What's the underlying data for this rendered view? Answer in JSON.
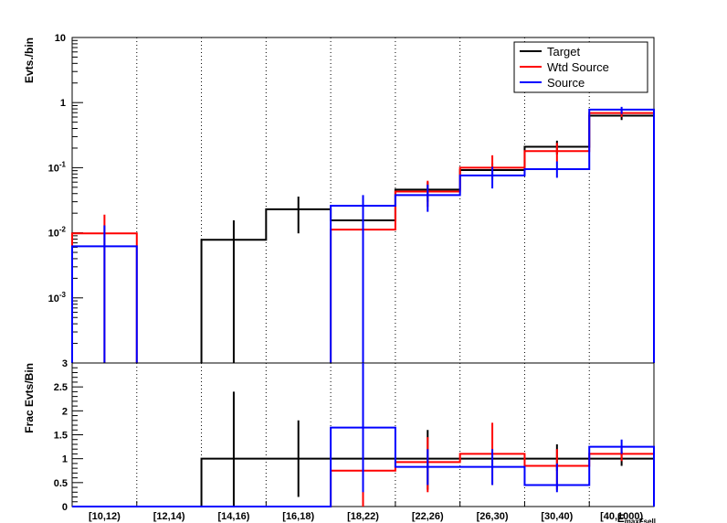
{
  "chart_data": [
    {
      "panel": "top",
      "type": "step",
      "ylabel": "Evts./bin",
      "yscale": "log",
      "ylim": [
        0.0001,
        10
      ],
      "yticks": [
        {
          "value": 10,
          "base": "10",
          "exp": ""
        },
        {
          "value": 1,
          "base": "1",
          "exp": ""
        },
        {
          "value": 0.1,
          "base": "10",
          "exp": "-1"
        },
        {
          "value": 0.01,
          "base": "10",
          "exp": "-2"
        },
        {
          "value": 0.001,
          "base": "10",
          "exp": "-3"
        }
      ],
      "categories": [
        "[10,12)",
        "[12,14)",
        "[14,16)",
        "[16,18)",
        "[18,22)",
        "[22,26)",
        "[26,30)",
        "[30,40)",
        "[40,1000)"
      ],
      "legend": {
        "position": "top-right",
        "entries": [
          "Target",
          "Wtd Source",
          "Source"
        ]
      },
      "series": [
        {
          "name": "Target",
          "color": "#000000",
          "values": [
            null,
            null,
            0.0078,
            0.023,
            0.0155,
            0.046,
            0.092,
            0.21,
            0.63
          ],
          "err_low": [
            null,
            null,
            0.0001,
            0.0098,
            0.0001,
            0.03,
            0.068,
            0.16,
            0.54
          ],
          "err_high": [
            null,
            null,
            0.0155,
            0.036,
            0.031,
            0.06,
            0.118,
            0.26,
            0.72
          ]
        },
        {
          "name": "Wtd Source",
          "color": "#ff0000",
          "values": [
            0.0098,
            null,
            null,
            null,
            0.0112,
            0.043,
            0.1,
            0.18,
            0.69
          ],
          "err_low": [
            0.0001,
            null,
            null,
            null,
            0.0044,
            0.025,
            0.065,
            0.125,
            0.6
          ],
          "err_high": [
            0.019,
            null,
            null,
            null,
            0.018,
            0.063,
            0.155,
            0.24,
            0.79
          ]
        },
        {
          "name": "Source",
          "color": "#0000ff",
          "values": [
            0.0062,
            null,
            null,
            null,
            0.026,
            0.038,
            0.076,
            0.095,
            0.78
          ],
          "err_low": [
            0.0001,
            null,
            null,
            null,
            0.0001,
            0.021,
            0.048,
            0.07,
            0.67
          ],
          "err_high": [
            0.013,
            null,
            null,
            null,
            0.038,
            0.055,
            0.103,
            0.125,
            0.86
          ]
        }
      ]
    },
    {
      "panel": "bottom",
      "type": "step",
      "ylabel": "Frac Evts/Bin",
      "xlabel": "E_{maxFsell}",
      "ylim": [
        0,
        3
      ],
      "yticks": [
        0,
        0.5,
        1,
        1.5,
        2,
        2.5,
        3
      ],
      "categories": [
        "[10,12)",
        "[12,14)",
        "[14,16)",
        "[16,18)",
        "[18,22)",
        "[22,26)",
        "[26,30)",
        "[30,40)",
        "[40,1000)"
      ],
      "series": [
        {
          "name": "Target",
          "color": "#000000",
          "values": [
            0,
            0,
            1,
            1,
            1,
            1,
            1,
            1,
            1
          ],
          "err_low": [
            null,
            null,
            0,
            0.2,
            null,
            0.35,
            null,
            0.75,
            0.85
          ],
          "err_high": [
            null,
            null,
            2.4,
            1.8,
            null,
            1.6,
            null,
            1.3,
            1.15
          ]
        },
        {
          "name": "Wtd Source",
          "color": "#ff0000",
          "values": [
            0,
            0,
            0,
            0,
            0.75,
            0.93,
            1.1,
            0.85,
            1.1
          ],
          "err_low": [
            null,
            null,
            null,
            null,
            0,
            0.3,
            0.45,
            0.35,
            0.95
          ],
          "err_high": [
            null,
            null,
            null,
            null,
            1.5,
            1.45,
            1.75,
            1.2,
            1.25
          ]
        },
        {
          "name": "Source",
          "color": "#0000ff",
          "values": [
            0,
            0,
            0,
            0,
            1.65,
            0.83,
            0.83,
            0.45,
            1.25
          ],
          "err_low": [
            null,
            null,
            null,
            null,
            0.3,
            0.45,
            0.45,
            0.3,
            1.1
          ],
          "err_high": [
            null,
            null,
            null,
            null,
            3,
            1.2,
            1.2,
            0.9,
            1.4
          ]
        }
      ]
    }
  ]
}
